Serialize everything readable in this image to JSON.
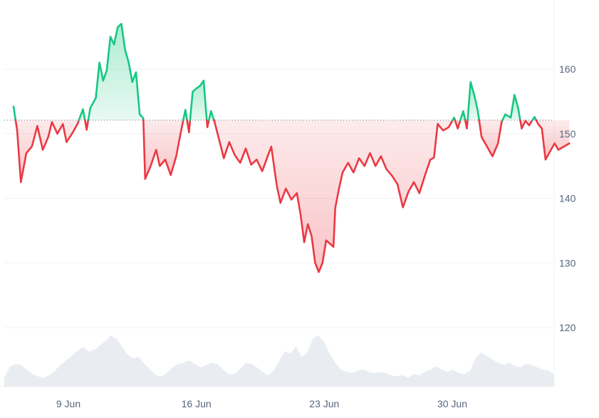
{
  "chart_data": {
    "type": "area",
    "x_tick_labels": [
      "9 Jun",
      "16 Jun",
      "23 Jun",
      "30 Jun"
    ],
    "x_tick_days": [
      9,
      16,
      23,
      30
    ],
    "y_tick_labels": [
      "120",
      "130",
      "140",
      "150",
      "160"
    ],
    "y_ticks": [
      120,
      130,
      140,
      150,
      160
    ],
    "ylim": [
      110,
      169
    ],
    "xlim_days": [
      6.0,
      36.4
    ],
    "baseline": 152.1,
    "grid": true,
    "colors": {
      "above": "#16c784",
      "below": "#ea3943",
      "above_fill_top": "#16c784",
      "below_fill": "#ea3943",
      "volume": "#e9ecf1",
      "grid": "#eff2f5",
      "baseline": "#58667e"
    },
    "series": [
      {
        "values": [
          {
            "d": 6.0,
            "v": 154.2
          },
          {
            "d": 6.2,
            "v": 150.5
          },
          {
            "d": 6.4,
            "v": 142.5
          },
          {
            "d": 6.7,
            "v": 147.0
          },
          {
            "d": 7.0,
            "v": 148.0
          },
          {
            "d": 7.3,
            "v": 151.2
          },
          {
            "d": 7.6,
            "v": 147.5
          },
          {
            "d": 7.9,
            "v": 149.5
          },
          {
            "d": 8.1,
            "v": 151.8
          },
          {
            "d": 8.4,
            "v": 150.0
          },
          {
            "d": 8.7,
            "v": 151.5
          },
          {
            "d": 8.9,
            "v": 148.7
          },
          {
            "d": 9.2,
            "v": 150.0
          },
          {
            "d": 9.5,
            "v": 151.5
          },
          {
            "d": 9.8,
            "v": 153.8
          },
          {
            "d": 10.0,
            "v": 150.6
          },
          {
            "d": 10.2,
            "v": 154.0
          },
          {
            "d": 10.5,
            "v": 155.5
          },
          {
            "d": 10.7,
            "v": 161.0
          },
          {
            "d": 10.9,
            "v": 158.2
          },
          {
            "d": 11.1,
            "v": 159.8
          },
          {
            "d": 11.3,
            "v": 165.0
          },
          {
            "d": 11.5,
            "v": 163.8
          },
          {
            "d": 11.7,
            "v": 166.5
          },
          {
            "d": 11.9,
            "v": 167.0
          },
          {
            "d": 12.1,
            "v": 163.0
          },
          {
            "d": 12.3,
            "v": 161.0
          },
          {
            "d": 12.5,
            "v": 158.0
          },
          {
            "d": 12.7,
            "v": 159.5
          },
          {
            "d": 12.9,
            "v": 153.0
          },
          {
            "d": 13.1,
            "v": 152.4
          },
          {
            "d": 13.2,
            "v": 143.0
          },
          {
            "d": 13.5,
            "v": 145.0
          },
          {
            "d": 13.8,
            "v": 147.5
          },
          {
            "d": 14.0,
            "v": 145.0
          },
          {
            "d": 14.3,
            "v": 146.0
          },
          {
            "d": 14.6,
            "v": 143.6
          },
          {
            "d": 14.9,
            "v": 146.5
          },
          {
            "d": 15.1,
            "v": 149.5
          },
          {
            "d": 15.4,
            "v": 153.7
          },
          {
            "d": 15.6,
            "v": 150.2
          },
          {
            "d": 15.8,
            "v": 156.5
          },
          {
            "d": 16.0,
            "v": 157.0
          },
          {
            "d": 16.2,
            "v": 157.4
          },
          {
            "d": 16.4,
            "v": 158.2
          },
          {
            "d": 16.6,
            "v": 151.0
          },
          {
            "d": 16.8,
            "v": 153.5
          },
          {
            "d": 17.0,
            "v": 151.8
          },
          {
            "d": 17.3,
            "v": 148.5
          },
          {
            "d": 17.5,
            "v": 146.2
          },
          {
            "d": 17.8,
            "v": 148.7
          },
          {
            "d": 18.1,
            "v": 146.7
          },
          {
            "d": 18.4,
            "v": 145.5
          },
          {
            "d": 18.7,
            "v": 147.7
          },
          {
            "d": 19.0,
            "v": 145.2
          },
          {
            "d": 19.3,
            "v": 146.0
          },
          {
            "d": 19.6,
            "v": 144.2
          },
          {
            "d": 19.9,
            "v": 146.5
          },
          {
            "d": 20.1,
            "v": 148.0
          },
          {
            "d": 20.4,
            "v": 142.0
          },
          {
            "d": 20.6,
            "v": 139.3
          },
          {
            "d": 20.9,
            "v": 141.5
          },
          {
            "d": 21.2,
            "v": 139.8
          },
          {
            "d": 21.5,
            "v": 140.8
          },
          {
            "d": 21.7,
            "v": 137.5
          },
          {
            "d": 21.9,
            "v": 133.2
          },
          {
            "d": 22.1,
            "v": 136.0
          },
          {
            "d": 22.3,
            "v": 134.2
          },
          {
            "d": 22.5,
            "v": 130.0
          },
          {
            "d": 22.7,
            "v": 128.6
          },
          {
            "d": 22.9,
            "v": 130.0
          },
          {
            "d": 23.1,
            "v": 133.5
          },
          {
            "d": 23.3,
            "v": 133.0
          },
          {
            "d": 23.5,
            "v": 132.5
          },
          {
            "d": 23.6,
            "v": 138.5
          },
          {
            "d": 23.8,
            "v": 141.5
          },
          {
            "d": 24.0,
            "v": 144.0
          },
          {
            "d": 24.3,
            "v": 145.5
          },
          {
            "d": 24.6,
            "v": 144.0
          },
          {
            "d": 24.9,
            "v": 146.2
          },
          {
            "d": 25.2,
            "v": 145.0
          },
          {
            "d": 25.5,
            "v": 147.0
          },
          {
            "d": 25.8,
            "v": 145.0
          },
          {
            "d": 26.1,
            "v": 146.5
          },
          {
            "d": 26.4,
            "v": 144.5
          },
          {
            "d": 26.7,
            "v": 143.5
          },
          {
            "d": 27.0,
            "v": 142.2
          },
          {
            "d": 27.3,
            "v": 138.6
          },
          {
            "d": 27.6,
            "v": 141.0
          },
          {
            "d": 27.9,
            "v": 142.5
          },
          {
            "d": 28.2,
            "v": 140.8
          },
          {
            "d": 28.5,
            "v": 143.5
          },
          {
            "d": 28.8,
            "v": 146.0
          },
          {
            "d": 29.0,
            "v": 146.3
          },
          {
            "d": 29.2,
            "v": 151.5
          },
          {
            "d": 29.5,
            "v": 150.5
          },
          {
            "d": 29.8,
            "v": 151.0
          },
          {
            "d": 30.1,
            "v": 152.5
          },
          {
            "d": 30.3,
            "v": 150.8
          },
          {
            "d": 30.6,
            "v": 153.5
          },
          {
            "d": 30.8,
            "v": 150.8
          },
          {
            "d": 31.0,
            "v": 158.0
          },
          {
            "d": 31.2,
            "v": 156.0
          },
          {
            "d": 31.4,
            "v": 153.5
          },
          {
            "d": 31.6,
            "v": 149.5
          },
          {
            "d": 31.9,
            "v": 148.0
          },
          {
            "d": 32.2,
            "v": 146.5
          },
          {
            "d": 32.5,
            "v": 148.5
          },
          {
            "d": 32.7,
            "v": 151.8
          },
          {
            "d": 32.9,
            "v": 153.0
          },
          {
            "d": 33.2,
            "v": 152.5
          },
          {
            "d": 33.4,
            "v": 156.0
          },
          {
            "d": 33.6,
            "v": 154.0
          },
          {
            "d": 33.8,
            "v": 150.8
          },
          {
            "d": 34.0,
            "v": 152.0
          },
          {
            "d": 34.2,
            "v": 151.3
          },
          {
            "d": 34.5,
            "v": 152.6
          },
          {
            "d": 34.7,
            "v": 151.5
          },
          {
            "d": 34.9,
            "v": 150.8
          },
          {
            "d": 35.1,
            "v": 146.0
          },
          {
            "d": 35.3,
            "v": 147.0
          },
          {
            "d": 35.6,
            "v": 148.5
          },
          {
            "d": 35.8,
            "v": 147.5
          },
          {
            "d": 36.1,
            "v": 148.0
          },
          {
            "d": 36.4,
            "v": 148.5
          }
        ]
      }
    ],
    "volume_relative": [
      0.16,
      0.35,
      0.4,
      0.38,
      0.3,
      0.22,
      0.18,
      0.15,
      0.2,
      0.28,
      0.38,
      0.46,
      0.54,
      0.62,
      0.7,
      0.62,
      0.64,
      0.72,
      0.8,
      0.9,
      0.84,
      0.7,
      0.56,
      0.5,
      0.52,
      0.4,
      0.3,
      0.2,
      0.18,
      0.24,
      0.34,
      0.4,
      0.42,
      0.46,
      0.4,
      0.34,
      0.38,
      0.42,
      0.4,
      0.3,
      0.22,
      0.22,
      0.3,
      0.42,
      0.4,
      0.34,
      0.26,
      0.2,
      0.28,
      0.45,
      0.62,
      0.58,
      0.7,
      0.52,
      0.6,
      0.84,
      0.9,
      0.78,
      0.58,
      0.42,
      0.3,
      0.26,
      0.24,
      0.28,
      0.3,
      0.26,
      0.24,
      0.26,
      0.24,
      0.2,
      0.18,
      0.2,
      0.16,
      0.22,
      0.2,
      0.26,
      0.3,
      0.36,
      0.3,
      0.26,
      0.3,
      0.24,
      0.22,
      0.28,
      0.5,
      0.6,
      0.54,
      0.48,
      0.42,
      0.38,
      0.42,
      0.36,
      0.34,
      0.4,
      0.38,
      0.34,
      0.3,
      0.28,
      0.22
    ]
  }
}
